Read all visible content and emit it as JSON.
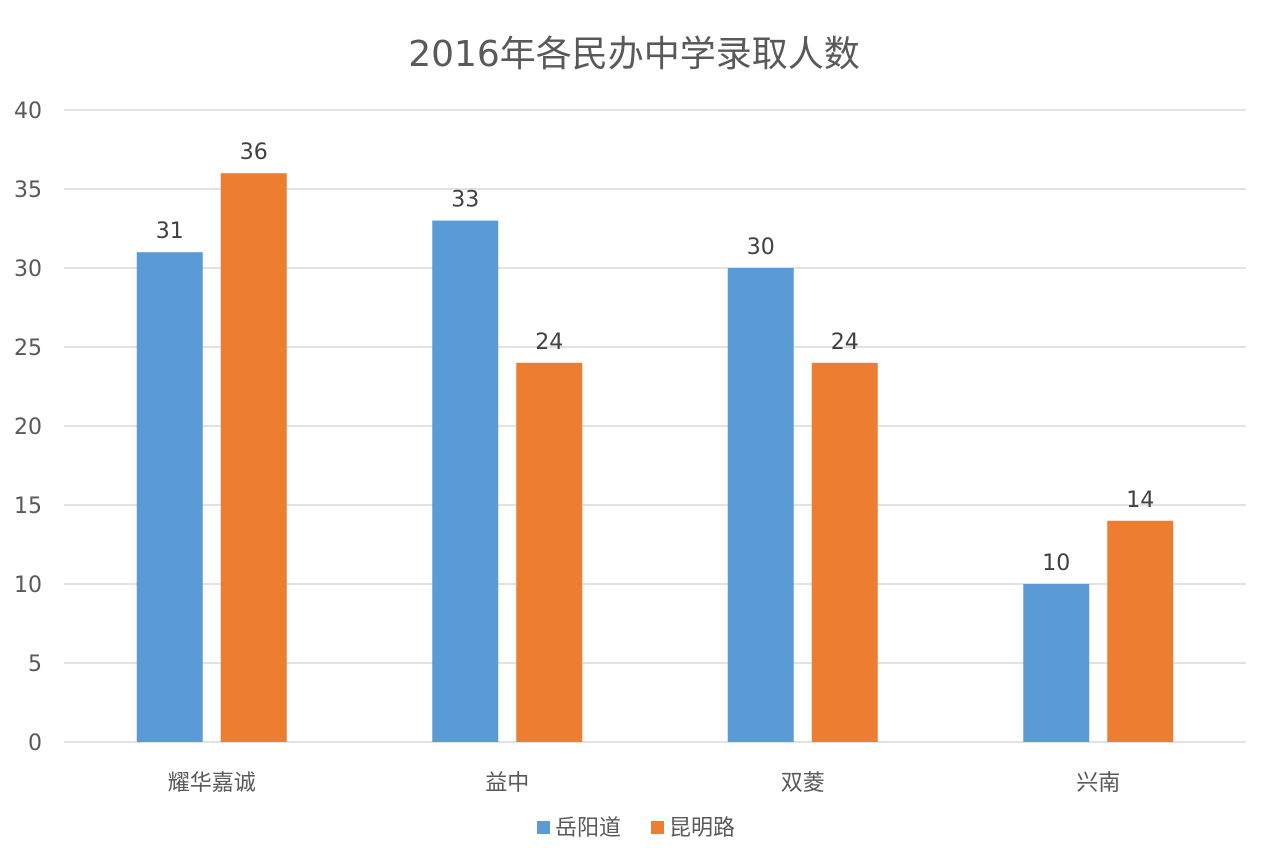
{
  "chart_data": {
    "type": "bar",
    "title": "2016年各民办中学录取人数",
    "categories": [
      "耀华嘉诚",
      "益中",
      "双菱",
      "兴南"
    ],
    "series": [
      {
        "name": "岳阳道",
        "values": [
          31,
          33,
          30,
          10
        ],
        "color": "#5B9BD5"
      },
      {
        "name": "昆明路",
        "values": [
          36,
          24,
          24,
          14
        ],
        "color": "#ED7D31"
      }
    ],
    "ylim": [
      0,
      40
    ],
    "yticks": [
      0,
      5,
      10,
      15,
      20,
      25,
      30,
      35,
      40
    ],
    "grid": true,
    "data_labels": true,
    "legend": "bottom",
    "colors": {
      "gridline": "#d9d9d9",
      "axis_text": "#595959"
    }
  }
}
